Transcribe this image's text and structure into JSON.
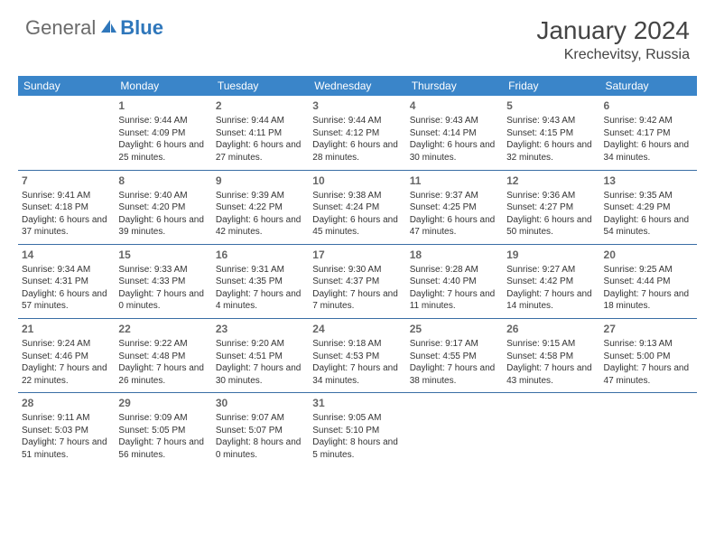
{
  "brand": {
    "part1": "General",
    "part2": "Blue"
  },
  "title": "January 2024",
  "location": "Krechevitsy, Russia",
  "colors": {
    "header_bg": "#3a85c9",
    "header_text": "#ffffff",
    "row_divider": "#3a6ea5",
    "brand_blue": "#2f77bb",
    "brand_gray": "#6b6b6b",
    "body_text": "#333333",
    "daynum_text": "#666666",
    "page_bg": "#ffffff"
  },
  "weekdays": [
    "Sunday",
    "Monday",
    "Tuesday",
    "Wednesday",
    "Thursday",
    "Friday",
    "Saturday"
  ],
  "weeks": [
    [
      null,
      {
        "n": "1",
        "sr": "9:44 AM",
        "ss": "4:09 PM",
        "dl": "6 hours and 25 minutes."
      },
      {
        "n": "2",
        "sr": "9:44 AM",
        "ss": "4:11 PM",
        "dl": "6 hours and 27 minutes."
      },
      {
        "n": "3",
        "sr": "9:44 AM",
        "ss": "4:12 PM",
        "dl": "6 hours and 28 minutes."
      },
      {
        "n": "4",
        "sr": "9:43 AM",
        "ss": "4:14 PM",
        "dl": "6 hours and 30 minutes."
      },
      {
        "n": "5",
        "sr": "9:43 AM",
        "ss": "4:15 PM",
        "dl": "6 hours and 32 minutes."
      },
      {
        "n": "6",
        "sr": "9:42 AM",
        "ss": "4:17 PM",
        "dl": "6 hours and 34 minutes."
      }
    ],
    [
      {
        "n": "7",
        "sr": "9:41 AM",
        "ss": "4:18 PM",
        "dl": "6 hours and 37 minutes."
      },
      {
        "n": "8",
        "sr": "9:40 AM",
        "ss": "4:20 PM",
        "dl": "6 hours and 39 minutes."
      },
      {
        "n": "9",
        "sr": "9:39 AM",
        "ss": "4:22 PM",
        "dl": "6 hours and 42 minutes."
      },
      {
        "n": "10",
        "sr": "9:38 AM",
        "ss": "4:24 PM",
        "dl": "6 hours and 45 minutes."
      },
      {
        "n": "11",
        "sr": "9:37 AM",
        "ss": "4:25 PM",
        "dl": "6 hours and 47 minutes."
      },
      {
        "n": "12",
        "sr": "9:36 AM",
        "ss": "4:27 PM",
        "dl": "6 hours and 50 minutes."
      },
      {
        "n": "13",
        "sr": "9:35 AM",
        "ss": "4:29 PM",
        "dl": "6 hours and 54 minutes."
      }
    ],
    [
      {
        "n": "14",
        "sr": "9:34 AM",
        "ss": "4:31 PM",
        "dl": "6 hours and 57 minutes."
      },
      {
        "n": "15",
        "sr": "9:33 AM",
        "ss": "4:33 PM",
        "dl": "7 hours and 0 minutes."
      },
      {
        "n": "16",
        "sr": "9:31 AM",
        "ss": "4:35 PM",
        "dl": "7 hours and 4 minutes."
      },
      {
        "n": "17",
        "sr": "9:30 AM",
        "ss": "4:37 PM",
        "dl": "7 hours and 7 minutes."
      },
      {
        "n": "18",
        "sr": "9:28 AM",
        "ss": "4:40 PM",
        "dl": "7 hours and 11 minutes."
      },
      {
        "n": "19",
        "sr": "9:27 AM",
        "ss": "4:42 PM",
        "dl": "7 hours and 14 minutes."
      },
      {
        "n": "20",
        "sr": "9:25 AM",
        "ss": "4:44 PM",
        "dl": "7 hours and 18 minutes."
      }
    ],
    [
      {
        "n": "21",
        "sr": "9:24 AM",
        "ss": "4:46 PM",
        "dl": "7 hours and 22 minutes."
      },
      {
        "n": "22",
        "sr": "9:22 AM",
        "ss": "4:48 PM",
        "dl": "7 hours and 26 minutes."
      },
      {
        "n": "23",
        "sr": "9:20 AM",
        "ss": "4:51 PM",
        "dl": "7 hours and 30 minutes."
      },
      {
        "n": "24",
        "sr": "9:18 AM",
        "ss": "4:53 PM",
        "dl": "7 hours and 34 minutes."
      },
      {
        "n": "25",
        "sr": "9:17 AM",
        "ss": "4:55 PM",
        "dl": "7 hours and 38 minutes."
      },
      {
        "n": "26",
        "sr": "9:15 AM",
        "ss": "4:58 PM",
        "dl": "7 hours and 43 minutes."
      },
      {
        "n": "27",
        "sr": "9:13 AM",
        "ss": "5:00 PM",
        "dl": "7 hours and 47 minutes."
      }
    ],
    [
      {
        "n": "28",
        "sr": "9:11 AM",
        "ss": "5:03 PM",
        "dl": "7 hours and 51 minutes."
      },
      {
        "n": "29",
        "sr": "9:09 AM",
        "ss": "5:05 PM",
        "dl": "7 hours and 56 minutes."
      },
      {
        "n": "30",
        "sr": "9:07 AM",
        "ss": "5:07 PM",
        "dl": "8 hours and 0 minutes."
      },
      {
        "n": "31",
        "sr": "9:05 AM",
        "ss": "5:10 PM",
        "dl": "8 hours and 5 minutes."
      },
      null,
      null,
      null
    ]
  ],
  "labels": {
    "sunrise": "Sunrise:",
    "sunset": "Sunset:",
    "daylight": "Daylight:"
  }
}
